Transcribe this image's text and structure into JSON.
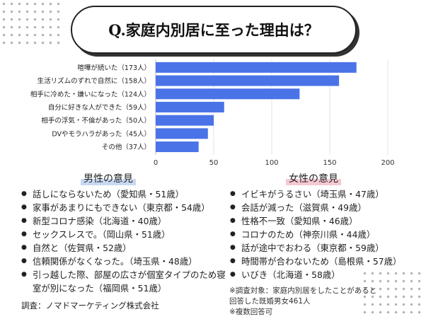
{
  "title": "Q.家庭内別居に至った理由は？",
  "chart_data": {
    "type": "bar",
    "orientation": "horizontal",
    "categories": [
      "喧嘩が続いた（173人）",
      "生活リズムのずれで自然に（158人）",
      "相手に冷めた・嫌いになった（124人）",
      "自分に好きな人ができた（59人）",
      "相手の浮気・不倫があった（50人）",
      "DVやモラハラがあった（45人）",
      "その他（37人）"
    ],
    "values": [
      173,
      158,
      124,
      59,
      50,
      45,
      37
    ],
    "xticks": [
      "0",
      "50",
      "100",
      "150",
      "200"
    ],
    "xlim": [
      0,
      200
    ],
    "grid": true,
    "color": "#4a73e8"
  },
  "male": {
    "heading": "男性の意見",
    "items": [
      "話しにならないため（愛知県・51歳）",
      "家事があまりにもできない（東京都・54歳）",
      "新型コロナ感染（北海道・40歳）",
      "セックスレスで。（岡山県・51歳）",
      "自然と（佐賀県・52歳）",
      "信頼関係がなくなった。（埼玉県・48歳）",
      "引っ越した際、部屋の広さが個室タイプのため寝室が別になった（福岡県・51歳）"
    ]
  },
  "female": {
    "heading": "女性の意見",
    "items": [
      "イビキがうるさい（埼玉県・47歳）",
      "会話が減った（滋賀県・49歳）",
      "性格不一致（愛知県・46歳）",
      "コロナのため（神奈川県・44歳）",
      "話が途中でおわる（東京都・59歳）",
      "時間帯が合わないため（島根県・57歳）",
      "いびき（北海道・58歳）"
    ]
  },
  "notes": [
    "※調査対象：家庭内別居をしたことがあると",
    "回答した既婚男女461人",
    "※複数回答可"
  ],
  "credit": "調査：ノマドマーケティング株式会社"
}
